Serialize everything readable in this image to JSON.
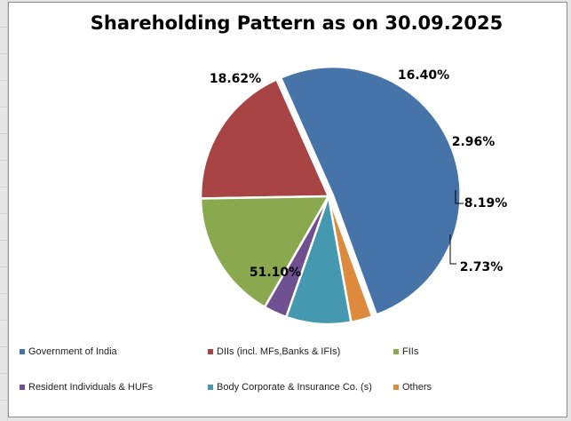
{
  "chart_data": {
    "type": "pie",
    "title": "Shareholding Pattern as on 30.09.2025",
    "legend_position": "bottom",
    "series": [
      {
        "name": "Government of India",
        "value": 51.1,
        "label": "51.10%",
        "color": "#4673a8"
      },
      {
        "name": "DIIs (incl. MFs,Banks & IFIs)",
        "value": 18.62,
        "label": "18.62%",
        "color": "#a84544"
      },
      {
        "name": "FIIs",
        "value": 16.4,
        "label": "16.40%",
        "color": "#8aa84e"
      },
      {
        "name": "Resident Individuals &  HUFs",
        "value": 2.96,
        "label": "2.96%",
        "color": "#6f5090"
      },
      {
        "name": "Body Corporate & Insurance Co. (s)",
        "value": 8.19,
        "label": "8.19%",
        "color": "#4498b0"
      },
      {
        "name": "Others",
        "value": 2.73,
        "label": "2.73%",
        "color": "#dd8a3e"
      }
    ]
  }
}
